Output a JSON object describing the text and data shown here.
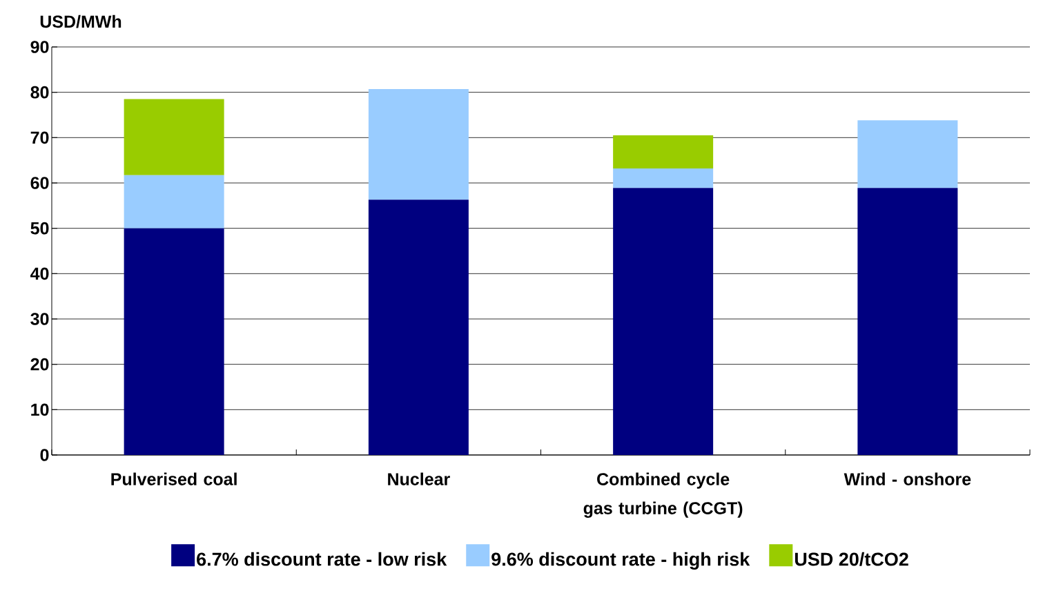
{
  "chart_data": {
    "type": "bar",
    "stacked": true,
    "ylabel": "USD/MWh",
    "categories": [
      "Pulverised coal",
      "Nuclear",
      "Combined cycle gas turbine (CCGT)",
      "Wind - onshore"
    ],
    "series": [
      {
        "name": "6.7% discount rate - low risk",
        "color": "#000080",
        "values": [
          50,
          56.3,
          58.9,
          58.9
        ]
      },
      {
        "name": "9.6% discount rate - high risk",
        "color": "#99ccff",
        "values": [
          11.7,
          24.4,
          4.3,
          14.9
        ]
      },
      {
        "name": "USD 20/tCO2",
        "color": "#99cc00",
        "values": [
          16.8,
          null,
          7.3,
          null
        ]
      }
    ],
    "ylim": [
      0,
      90
    ],
    "yticks": [
      0,
      10,
      20,
      30,
      40,
      50,
      60,
      70,
      80,
      90
    ],
    "grid": "y",
    "legend": "bottom"
  }
}
